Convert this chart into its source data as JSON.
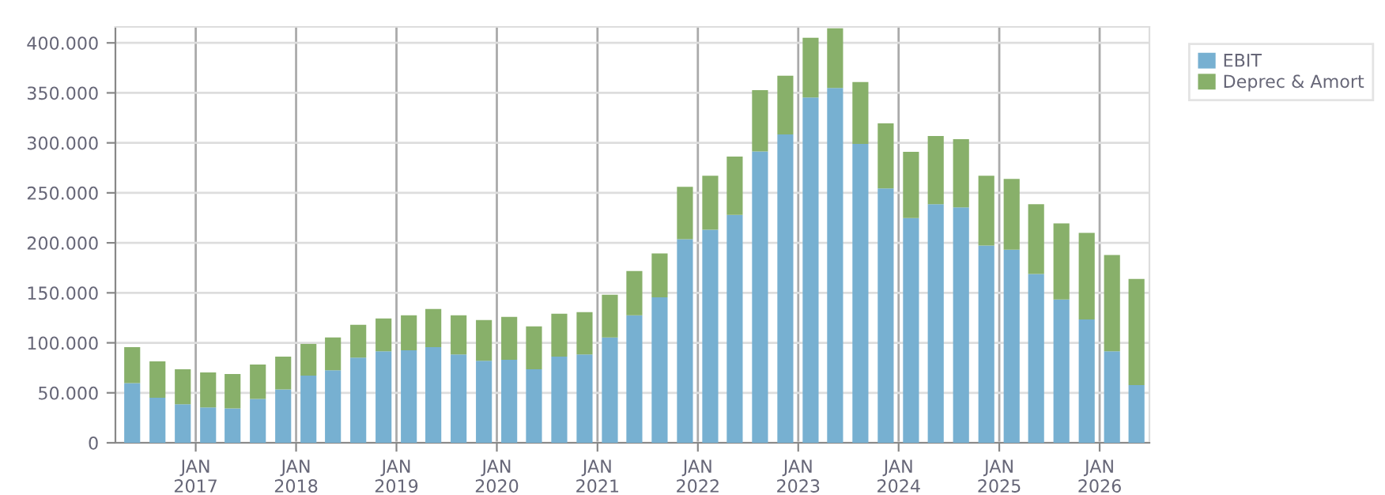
{
  "chart_data": {
    "type": "bar",
    "stacked": true,
    "x": [
      "2016-05-15",
      "2016-08-15",
      "2016-11-15",
      "2017-02-15",
      "2017-05-15",
      "2017-08-15",
      "2017-11-15",
      "2018-02-15",
      "2018-05-15",
      "2018-08-15",
      "2018-11-15",
      "2019-02-15",
      "2019-05-15",
      "2019-08-15",
      "2019-11-15",
      "2020-02-15",
      "2020-05-15",
      "2020-08-15",
      "2020-11-15",
      "2021-02-15",
      "2021-05-15",
      "2021-08-15",
      "2021-11-15",
      "2022-02-15",
      "2022-05-15",
      "2022-08-15",
      "2022-11-15",
      "2023-02-15",
      "2023-05-15",
      "2023-08-15",
      "2023-11-15",
      "2024-02-15",
      "2024-05-15",
      "2024-08-15",
      "2024-11-15",
      "2025-02-15",
      "2025-05-15",
      "2025-08-15",
      "2025-11-15",
      "2026-02-15",
      "2026-05-15"
    ],
    "series": [
      {
        "name": "EBIT",
        "color": "#77b0d1",
        "values": [
          59800,
          45000,
          38600,
          35400,
          34400,
          43900,
          53400,
          67200,
          72500,
          85200,
          91500,
          92600,
          95700,
          88300,
          82000,
          83100,
          73500,
          86200,
          88300,
          105300,
          127500,
          145500,
          203700,
          213200,
          228000,
          291500,
          308400,
          345400,
          355000,
          298900,
          254400,
          224800,
          238600,
          235400,
          197300,
          193100,
          168800,
          143400,
          123300,
          91500,
          57700
        ]
      },
      {
        "name": "Deprec & Amort",
        "color": "#88b06a",
        "values": [
          35900,
          36500,
          34900,
          35000,
          34400,
          34400,
          32800,
          31700,
          32800,
          32800,
          32800,
          34900,
          38100,
          39200,
          40700,
          42800,
          42900,
          42900,
          42400,
          42800,
          44400,
          43900,
          52300,
          53900,
          58200,
          61300,
          58700,
          59800,
          59700,
          61900,
          65100,
          66200,
          68300,
          68200,
          69800,
          70900,
          69800,
          76100,
          86700,
          96300,
          106300
        ]
      }
    ],
    "xlim": [
      "2016-03-15",
      "2026-07-01"
    ],
    "xticks": [
      {
        "value": "2017-01-01",
        "label": "JAN\n2017"
      },
      {
        "value": "2018-01-01",
        "label": "JAN\n2018"
      },
      {
        "value": "2019-01-01",
        "label": "JAN\n2019"
      },
      {
        "value": "2020-01-01",
        "label": "JAN\n2020"
      },
      {
        "value": "2021-01-01",
        "label": "JAN\n2021"
      },
      {
        "value": "2022-01-01",
        "label": "JAN\n2022"
      },
      {
        "value": "2023-01-01",
        "label": "JAN\n2023"
      },
      {
        "value": "2024-01-01",
        "label": "JAN\n2024"
      },
      {
        "value": "2025-01-01",
        "label": "JAN\n2025"
      },
      {
        "value": "2026-01-01",
        "label": "JAN\n2026"
      }
    ],
    "ylim": [
      0,
      416000
    ],
    "yticks": [
      0,
      {
        "value": 50000,
        "label": "50.000"
      },
      {
        "value": 100000,
        "label": "100.000"
      },
      {
        "value": 150000,
        "label": "150.000"
      },
      {
        "value": 200000,
        "label": "200.000"
      },
      {
        "value": 250000,
        "label": "250.000"
      },
      {
        "value": 300000,
        "label": "300.000"
      },
      {
        "value": 350000,
        "label": "350.000"
      },
      {
        "value": 400000,
        "label": "400.000"
      }
    ],
    "grid": true,
    "legend": "top right"
  }
}
